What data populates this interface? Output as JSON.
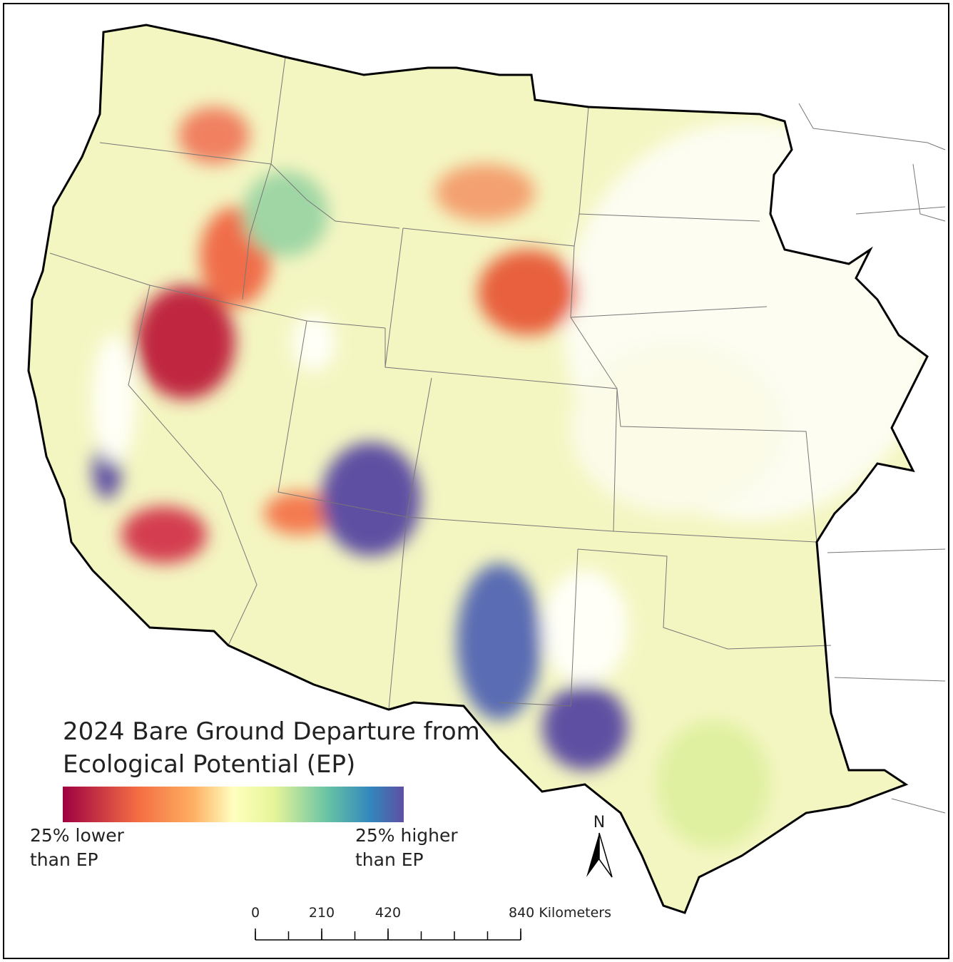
{
  "title": [
    "2024 Bare Ground Departure from",
    "Ecological Potential (EP)"
  ],
  "legend": {
    "low_label": [
      "25% lower",
      "than EP"
    ],
    "high_label": [
      "25% higher",
      "than EP"
    ]
  },
  "north_arrow": "N",
  "scale_bar": {
    "ticks": [
      0,
      210,
      420,
      840
    ],
    "unit": "Kilometers"
  }
}
